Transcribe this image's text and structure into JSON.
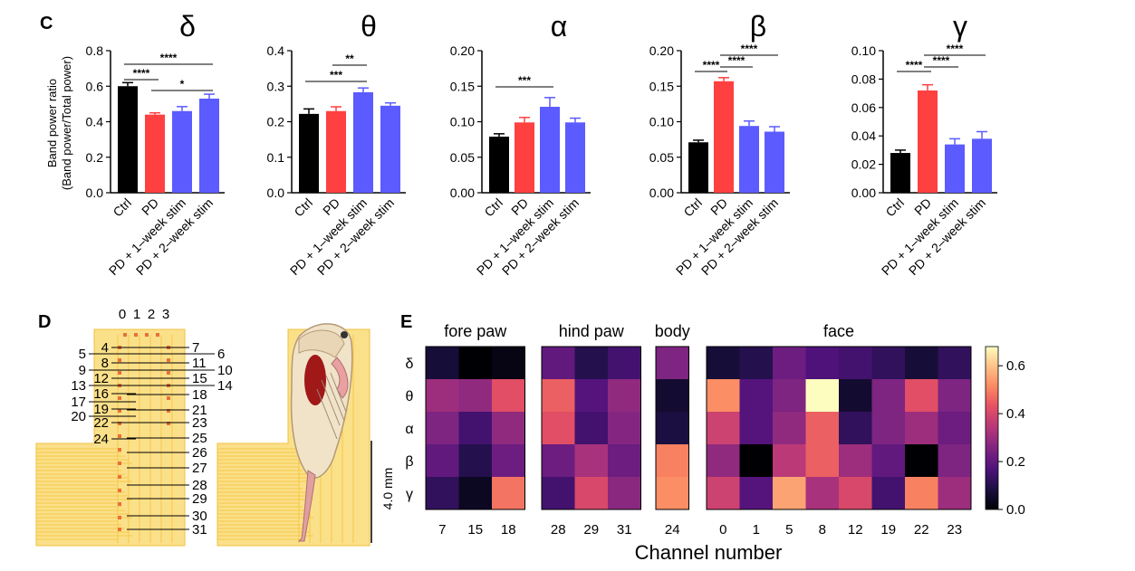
{
  "panel_c": {
    "letter": "C",
    "ylabel_line1": "Band power ratio",
    "ylabel_line2": "(Band power/Total power)"
  },
  "panel_d": {
    "letter": "D",
    "top_numbers": [
      "0",
      "1",
      "2",
      "3"
    ],
    "left_numbers": [
      "4",
      "5",
      "8",
      "9",
      "12",
      "13",
      "16",
      "17",
      "19",
      "20",
      "22",
      "24"
    ],
    "right_numbers": [
      "7",
      "6",
      "11",
      "10",
      "15",
      "14",
      "18",
      "21",
      "23",
      "25",
      "26",
      "27",
      "28",
      "29",
      "30",
      "31"
    ],
    "scale_label": "4.0 mm"
  },
  "panel_e": {
    "letter": "E",
    "xlabel": "Channel number"
  },
  "chart_data": [
    {
      "type": "bar",
      "title": "δ",
      "categories": [
        "Ctrl",
        "PD",
        "PD + 1–week stim",
        "PD + 2–week stim"
      ],
      "values": [
        0.6,
        0.44,
        0.46,
        0.53
      ],
      "errors": [
        0.02,
        0.01,
        0.025,
        0.025
      ],
      "colors": [
        "#000000",
        "#ff4040",
        "#5b5bff",
        "#5b5bff"
      ],
      "ylim": [
        0,
        0.8
      ],
      "yticks": [
        "0.0",
        "0.2",
        "0.4",
        "0.6",
        "0.8"
      ],
      "significance": [
        {
          "from": 0,
          "to": 3,
          "label": "****"
        },
        {
          "from": 0,
          "to": 1,
          "label": "****"
        },
        {
          "from": 1,
          "to": 3,
          "label": "*"
        }
      ]
    },
    {
      "type": "bar",
      "title": "θ",
      "categories": [
        "Ctrl",
        "PD",
        "PD + 1–week stim",
        "PD + 2–week stim"
      ],
      "values": [
        0.222,
        0.23,
        0.283,
        0.245
      ],
      "errors": [
        0.014,
        0.012,
        0.012,
        0.008
      ],
      "colors": [
        "#000000",
        "#ff4040",
        "#5b5bff",
        "#5b5bff"
      ],
      "ylim": [
        0,
        0.4
      ],
      "yticks": [
        "0.0",
        "0.1",
        "0.2",
        "0.3",
        "0.4"
      ],
      "significance": [
        {
          "from": 1,
          "to": 2,
          "label": "**"
        },
        {
          "from": 0,
          "to": 2,
          "label": "***"
        }
      ]
    },
    {
      "type": "bar",
      "title": "α",
      "categories": [
        "Ctrl",
        "PD",
        "PD + 1–week stim",
        "PD + 2–week stim"
      ],
      "values": [
        0.079,
        0.099,
        0.121,
        0.099
      ],
      "errors": [
        0.004,
        0.007,
        0.013,
        0.006
      ],
      "colors": [
        "#000000",
        "#ff4040",
        "#5b5bff",
        "#5b5bff"
      ],
      "ylim": [
        0,
        0.2
      ],
      "yticks": [
        "0.00",
        "0.05",
        "0.10",
        "0.15",
        "0.20"
      ],
      "significance": [
        {
          "from": 0,
          "to": 2,
          "label": "***"
        }
      ]
    },
    {
      "type": "bar",
      "title": "β",
      "categories": [
        "Ctrl",
        "PD",
        "PD + 1–week stim",
        "PD + 2–week stim"
      ],
      "values": [
        0.071,
        0.157,
        0.094,
        0.086
      ],
      "errors": [
        0.003,
        0.005,
        0.007,
        0.007
      ],
      "colors": [
        "#000000",
        "#ff4040",
        "#5b5bff",
        "#5b5bff"
      ],
      "ylim": [
        0,
        0.2
      ],
      "yticks": [
        "0.00",
        "0.05",
        "0.10",
        "0.15",
        "0.20"
      ],
      "significance": [
        {
          "from": 1,
          "to": 3,
          "label": "****"
        },
        {
          "from": 0,
          "to": 1,
          "label": "****"
        },
        {
          "from": 1,
          "to": 2,
          "label": "****"
        }
      ]
    },
    {
      "type": "bar",
      "title": "γ",
      "categories": [
        "Ctrl",
        "PD",
        "PD + 1–week stim",
        "PD + 2–week stim"
      ],
      "values": [
        0.028,
        0.072,
        0.034,
        0.038
      ],
      "errors": [
        0.002,
        0.004,
        0.004,
        0.005
      ],
      "colors": [
        "#000000",
        "#ff4040",
        "#5b5bff",
        "#5b5bff"
      ],
      "ylim": [
        0,
        0.1
      ],
      "yticks": [
        "0.00",
        "0.02",
        "0.04",
        "0.06",
        "0.08",
        "0.10"
      ],
      "significance": [
        {
          "from": 1,
          "to": 3,
          "label": "****"
        },
        {
          "from": 0,
          "to": 1,
          "label": "****"
        },
        {
          "from": 1,
          "to": 2,
          "label": "****"
        }
      ]
    },
    {
      "type": "heatmap",
      "rows": [
        "δ",
        "θ",
        "α",
        "β",
        "γ"
      ],
      "groups": [
        {
          "name": "fore paw",
          "channels": [
            "7",
            "15",
            "18"
          ]
        },
        {
          "name": "hind paw",
          "channels": [
            "28",
            "29",
            "31"
          ]
        },
        {
          "name": "body",
          "channels": [
            "24"
          ]
        },
        {
          "name": "face",
          "channels": [
            "0",
            "1",
            "5",
            "8",
            "12",
            "19",
            "22",
            "23"
          ]
        }
      ],
      "values": [
        [
          0.07,
          0.0,
          0.02,
          0.2,
          0.1,
          0.15,
          0.25,
          0.07,
          0.1,
          0.22,
          0.17,
          0.15,
          0.12,
          0.07,
          0.12
        ],
        [
          0.3,
          0.28,
          0.42,
          0.45,
          0.18,
          0.28,
          0.06,
          0.52,
          0.18,
          0.25,
          0.68,
          0.06,
          0.25,
          0.42,
          0.25
        ],
        [
          0.25,
          0.15,
          0.28,
          0.42,
          0.15,
          0.26,
          0.08,
          0.38,
          0.18,
          0.28,
          0.45,
          0.12,
          0.25,
          0.3,
          0.22
        ],
        [
          0.2,
          0.1,
          0.22,
          0.22,
          0.32,
          0.22,
          0.5,
          0.28,
          0.0,
          0.35,
          0.45,
          0.3,
          0.2,
          0.0,
          0.25
        ],
        [
          0.12,
          0.04,
          0.48,
          0.15,
          0.4,
          0.27,
          0.52,
          0.38,
          0.18,
          0.55,
          0.32,
          0.4,
          0.15,
          0.5,
          0.3
        ]
      ],
      "colorbar_ticks": [
        "0.0",
        "0.2",
        "0.4",
        "0.6"
      ],
      "zlim": [
        0,
        0.68
      ],
      "colormap": "magma"
    }
  ]
}
